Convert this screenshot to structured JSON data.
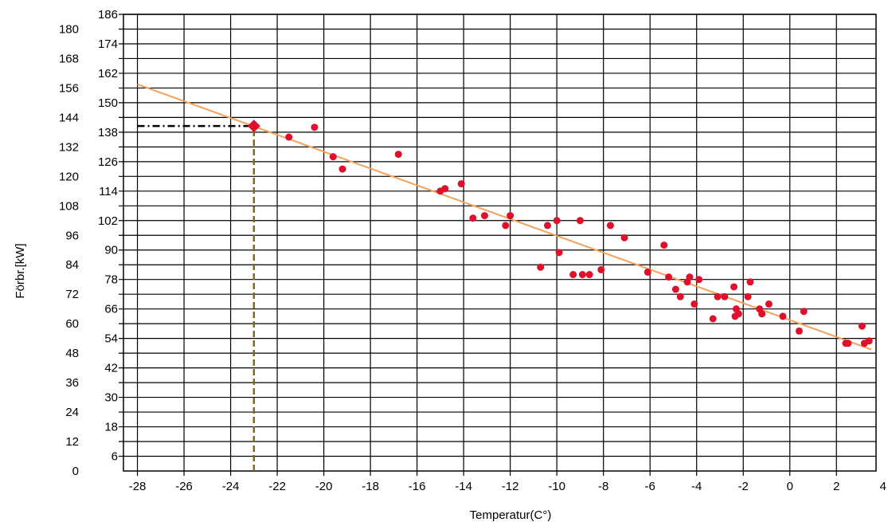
{
  "chart_data": {
    "type": "scatter",
    "title": "",
    "xlabel": "Temperatur(C°)",
    "ylabel": "Förbr.[kW]",
    "xlim": [
      -28,
      3.5
    ],
    "ylim": [
      0,
      186
    ],
    "x_ticks": [
      -28,
      -26,
      -24,
      -22,
      -20,
      -18,
      -16,
      -14,
      -12,
      -10,
      -8,
      -6,
      -4,
      -2,
      0,
      2,
      4
    ],
    "x_tick_labels": [
      "-28",
      "-26",
      "-24",
      "-22",
      "-20",
      "-18",
      "-16",
      "-14",
      "-12",
      "-10",
      "-8",
      "-6",
      "-4",
      "-2",
      "0",
      "2",
      "4"
    ],
    "y_ticks": [
      0,
      6,
      12,
      18,
      24,
      30,
      36,
      42,
      48,
      54,
      60,
      66,
      72,
      78,
      84,
      90,
      96,
      102,
      108,
      114,
      120,
      126,
      132,
      138,
      144,
      150,
      156,
      162,
      168,
      174,
      180,
      186
    ],
    "y_tick_labels": [
      "0",
      "6",
      "12",
      "18",
      "24",
      "30",
      "36",
      "42",
      "48",
      "54",
      "60",
      "66",
      "72",
      "78",
      "84",
      "90",
      "96",
      "102",
      "108",
      "114",
      "120",
      "126",
      "132",
      "138",
      "144",
      "150",
      "156",
      "162",
      "168",
      "174",
      "180",
      "186"
    ],
    "grid": true,
    "colors": {
      "points": "#e0102a",
      "trend": "#f4a15a",
      "marker": "#e0102a",
      "h_guide": "#000000",
      "v_guide": "#7a6a20",
      "grid": "#000000"
    },
    "series": [
      {
        "kind": "scatter",
        "x": [
          -21.5,
          -20.4,
          -19.6,
          -19.2,
          -16.8,
          -15.0,
          -14.8,
          -14.1,
          -13.6,
          -13.1,
          -12.2,
          -12.0,
          -10.7,
          -10.4,
          -10.0,
          -9.9,
          -9.3,
          -9.0,
          -8.9,
          -8.6,
          -8.1,
          -7.7,
          -7.1,
          -6.1,
          -5.4,
          -5.2,
          -4.9,
          -4.7,
          -4.4,
          -4.3,
          -4.1,
          -3.9,
          -3.3,
          -3.1,
          -2.8,
          -2.4,
          -2.35,
          -2.3,
          -2.2,
          -1.8,
          -1.7,
          -1.3,
          -1.2,
          -0.9,
          -0.3,
          0.4,
          0.6,
          2.4,
          2.5,
          3.1,
          3.2,
          3.4
        ],
        "y": [
          136,
          140,
          128,
          123,
          129,
          114,
          115,
          117,
          103,
          104,
          100,
          104,
          83,
          100,
          102,
          89,
          80,
          102,
          80,
          80,
          82,
          100,
          95,
          81,
          92,
          79,
          74,
          71,
          77,
          79,
          68,
          78,
          62,
          71,
          71,
          75,
          63,
          66,
          64,
          71,
          77,
          66,
          64,
          68,
          63,
          57,
          65,
          52,
          52,
          59,
          52,
          53
        ]
      },
      {
        "kind": "trend",
        "x": [
          -28,
          3.5
        ],
        "y": [
          157.5,
          49.5
        ]
      },
      {
        "kind": "marker",
        "x": [
          -23
        ],
        "y": [
          140.5
        ]
      },
      {
        "kind": "h_guide",
        "x": [
          -28,
          -23
        ],
        "y": [
          140.5,
          140.5
        ]
      },
      {
        "kind": "v_guide",
        "x": [
          -23,
          -23
        ],
        "y": [
          0,
          140.5
        ]
      }
    ]
  }
}
